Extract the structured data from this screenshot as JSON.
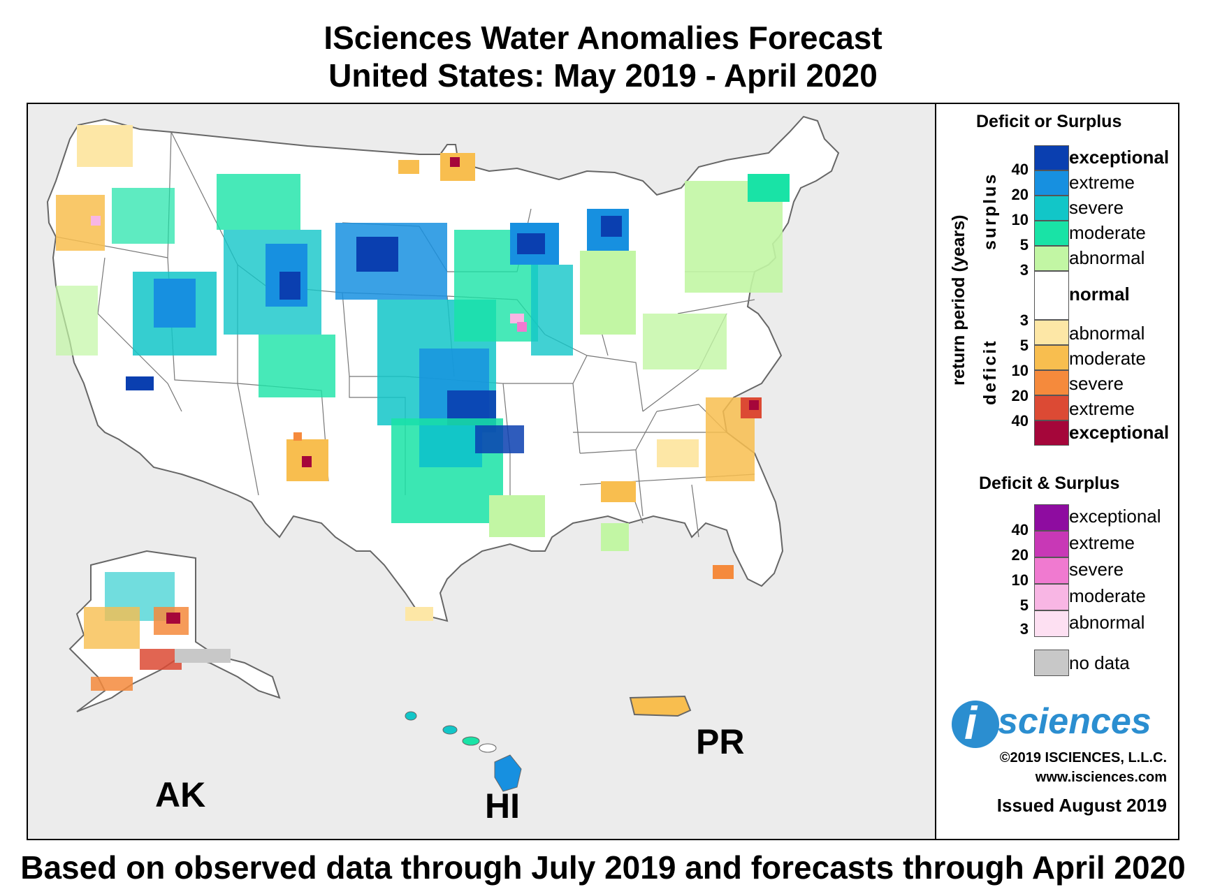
{
  "title": {
    "line1": "ISciences Water Anomalies Forecast",
    "line2": "United States: May 2019 - April 2020"
  },
  "map": {
    "regions": {
      "alaska": "AK",
      "hawaii": "HI",
      "puerto_rico": "PR"
    },
    "colors": {
      "background": "#ececec",
      "land": "#ffffff",
      "border": "#777777"
    }
  },
  "legend": {
    "section1_title": "Deficit or Surplus",
    "axis_label": "return period (years)",
    "surplus_label": "surplus",
    "deficit_label": "deficit",
    "normal_label": "normal",
    "surplus_classes": [
      {
        "label": "exceptional",
        "color": "#0a3fb0",
        "bold": true
      },
      {
        "label": "extreme",
        "color": "#1790e0"
      },
      {
        "label": "severe",
        "color": "#12c6c8"
      },
      {
        "label": "moderate",
        "color": "#19e3a6"
      },
      {
        "label": "abnormal",
        "color": "#c2f6a4"
      }
    ],
    "surplus_ticks": [
      "40",
      "20",
      "10",
      "5",
      "3"
    ],
    "deficit_classes": [
      {
        "label": "abnormal",
        "color": "#fde7a6"
      },
      {
        "label": "moderate",
        "color": "#f8be4f"
      },
      {
        "label": "severe",
        "color": "#f58a3c"
      },
      {
        "label": "extreme",
        "color": "#dc4a34"
      },
      {
        "label": "exceptional",
        "color": "#a5063a",
        "bold": true
      }
    ],
    "deficit_ticks": [
      "3",
      "5",
      "10",
      "20",
      "40"
    ],
    "section2_title": "Deficit & Surplus",
    "both_classes": [
      {
        "label": "exceptional",
        "color": "#8e0ca0"
      },
      {
        "label": "extreme",
        "color": "#c838b6"
      },
      {
        "label": "severe",
        "color": "#f07ad0"
      },
      {
        "label": "moderate",
        "color": "#f8b6e4"
      },
      {
        "label": "abnormal",
        "color": "#fde0f2"
      }
    ],
    "both_ticks": [
      "40",
      "20",
      "10",
      "5",
      "3"
    ],
    "no_data_label": "no data",
    "no_data_color": "#c8c8c8"
  },
  "branding": {
    "logo_i": "i",
    "logo_text": "sciences",
    "copyright": "©2019 ISCIENCES, L.L.C.",
    "website": "www.isciences.com",
    "issued": "Issued August 2019"
  },
  "footer": "Based on observed data through July 2019 and forecasts through April 2020"
}
